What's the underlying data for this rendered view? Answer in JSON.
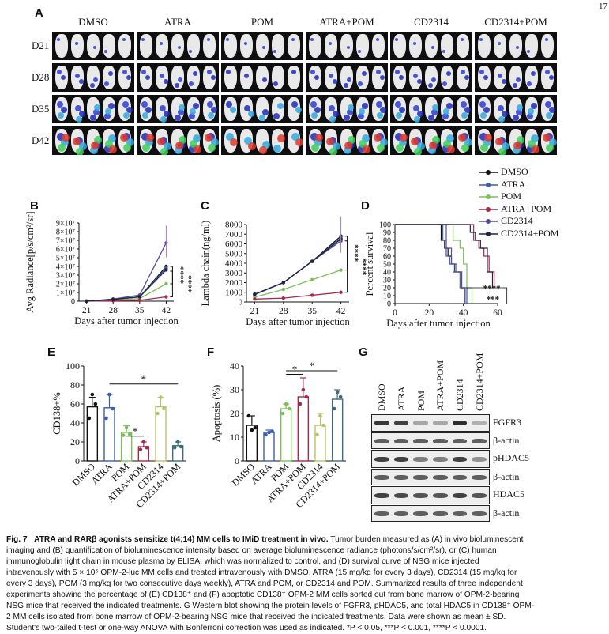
{
  "page_number": "17",
  "panels": {
    "A": {
      "letter": "A",
      "groups": [
        "DMSO",
        "ATRA",
        "POM",
        "ATRA+POM",
        "CD2314",
        "CD2314+POM"
      ],
      "days": [
        "D21",
        "D28",
        "D35",
        "D42"
      ]
    },
    "B": {
      "letter": "B"
    },
    "C": {
      "letter": "C"
    },
    "D": {
      "letter": "D"
    },
    "E": {
      "letter": "E"
    },
    "F": {
      "letter": "F"
    },
    "G": {
      "letter": "G"
    }
  },
  "legend": {
    "entries": [
      {
        "name": "DMSO",
        "color": "#111111",
        "marker": "circle"
      },
      {
        "name": "ATRA",
        "color": "#3a5fa8",
        "marker": "circle"
      },
      {
        "name": "POM",
        "color": "#7dbf5a",
        "marker": "circle"
      },
      {
        "name": "ATRA+POM",
        "color": "#a8284a",
        "marker": "circle"
      },
      {
        "name": "CD2314",
        "color": "#5a4a9a",
        "marker": "circle"
      },
      {
        "name": "CD2314+POM",
        "color": "#222244",
        "marker": "circle"
      }
    ]
  },
  "chart_data": [
    {
      "id": "B",
      "type": "line",
      "xlabel": "Days after tumor injection",
      "ylabel": "Avg Radiance[p/s/cm²/sr]",
      "x": [
        21,
        28,
        35,
        42
      ],
      "xticks": [
        "21",
        "28",
        "35",
        "42"
      ],
      "yticks": [
        "0",
        "1×10⁷",
        "2×10⁷",
        "3×10⁷",
        "4×10⁷",
        "5×10⁷",
        "6×10⁷",
        "7×10⁷",
        "8×10⁷",
        "9×10⁷"
      ],
      "ylim": [
        0,
        90000000
      ],
      "series": [
        {
          "name": "DMSO",
          "values": [
            0,
            2000000,
            5000000,
            40000000
          ]
        },
        {
          "name": "ATRA",
          "values": [
            0,
            2000000,
            5000000,
            38000000
          ]
        },
        {
          "name": "POM",
          "values": [
            0,
            1000000,
            3000000,
            20000000
          ]
        },
        {
          "name": "ATRA+POM",
          "values": [
            0,
            500000,
            1000000,
            5000000
          ]
        },
        {
          "name": "CD2314",
          "values": [
            0,
            2500000,
            7000000,
            67000000
          ]
        },
        {
          "name": "CD2314+POM",
          "values": [
            0,
            2000000,
            5000000,
            36000000
          ]
        }
      ],
      "significance": [
        "****",
        "****"
      ]
    },
    {
      "id": "C",
      "type": "line",
      "xlabel": "Days after tumor injection",
      "ylabel": "Lambda chain(ng/ml)",
      "x": [
        21,
        28,
        35,
        42
      ],
      "xticks": [
        "21",
        "28",
        "35",
        "42"
      ],
      "yticks": [
        "0",
        "1000",
        "2000",
        "3000",
        "4000",
        "5000",
        "6000",
        "7000",
        "8000"
      ],
      "ylim": [
        0,
        8000
      ],
      "series": [
        {
          "name": "DMSO",
          "values": [
            800,
            2000,
            4200,
            6800
          ]
        },
        {
          "name": "ATRA",
          "values": [
            750,
            2000,
            4200,
            6600
          ]
        },
        {
          "name": "POM",
          "values": [
            500,
            1300,
            2300,
            3300
          ]
        },
        {
          "name": "ATRA+POM",
          "values": [
            300,
            400,
            700,
            1000
          ]
        },
        {
          "name": "CD2314",
          "values": [
            800,
            2000,
            4200,
            6300
          ]
        },
        {
          "name": "CD2314+POM",
          "values": [
            800,
            2000,
            4200,
            6500
          ]
        }
      ],
      "significance": [
        "****",
        "****"
      ]
    },
    {
      "id": "D",
      "type": "line",
      "xlabel": "Days after tumor injection",
      "ylabel": "Percent survival",
      "xticks": [
        "0",
        "20",
        "40",
        "60"
      ],
      "yticks": [
        "0",
        "10",
        "20",
        "30",
        "40",
        "50",
        "60",
        "70",
        "80",
        "90",
        "100"
      ],
      "xlim": [
        0,
        60
      ],
      "ylim": [
        0,
        100
      ],
      "series": [
        {
          "name": "DMSO",
          "x": [
            0,
            25,
            27,
            29,
            31,
            33,
            35,
            37,
            39,
            41
          ],
          "values": [
            100,
            100,
            80,
            70,
            60,
            50,
            40,
            40,
            20,
            0
          ]
        },
        {
          "name": "ATRA",
          "x": [
            0,
            26,
            28,
            30,
            32,
            34,
            38,
            41
          ],
          "values": [
            100,
            100,
            80,
            60,
            50,
            40,
            20,
            0
          ]
        },
        {
          "name": "POM",
          "x": [
            0,
            30,
            34,
            38,
            40,
            42,
            45
          ],
          "values": [
            100,
            100,
            80,
            70,
            50,
            20,
            0
          ]
        },
        {
          "name": "ATRA+POM",
          "x": [
            0,
            43,
            46,
            49,
            52,
            55,
            58
          ],
          "values": [
            100,
            100,
            80,
            70,
            60,
            40,
            20
          ]
        },
        {
          "name": "CD2314",
          "x": [
            0,
            27,
            30,
            33,
            36,
            39,
            42
          ],
          "values": [
            100,
            100,
            70,
            50,
            40,
            20,
            0
          ]
        },
        {
          "name": "CD2314+POM",
          "x": [
            0,
            40,
            44,
            47,
            50,
            54,
            57
          ],
          "values": [
            100,
            100,
            90,
            80,
            70,
            40,
            20
          ]
        }
      ],
      "significance": [
        "****",
        "***"
      ]
    },
    {
      "id": "E",
      "type": "bar",
      "ylabel": "CD138+%",
      "categories": [
        "DMSO",
        "ATRA",
        "POM",
        "ATRA+POM",
        "CD2314",
        "CD2314+POM"
      ],
      "values": [
        57,
        56,
        30,
        15,
        57,
        16
      ],
      "errors": [
        10,
        14,
        7,
        5,
        10,
        4
      ],
      "points": [
        [
          45,
          70,
          60
        ],
        [
          45,
          70,
          55
        ],
        [
          27,
          35,
          28
        ],
        [
          12,
          20,
          14
        ],
        [
          50,
          67,
          55
        ],
        [
          14,
          20,
          15
        ]
      ],
      "yticks": [
        "0",
        "20",
        "40",
        "60",
        "80",
        "100"
      ],
      "ylim": [
        0,
        100
      ],
      "colors": [
        "#111111",
        "#3a5fa8",
        "#7dbf5a",
        "#a8284a",
        "#b9c46a",
        "#3d6b7a"
      ],
      "significance": [
        "*",
        "*"
      ]
    },
    {
      "id": "F",
      "type": "bar",
      "ylabel": "Apoptosis (%)",
      "categories": [
        "DMSO",
        "ATRA",
        "POM",
        "ATRA+POM",
        "CD2314",
        "CD2314+POM"
      ],
      "values": [
        15,
        12,
        22,
        27,
        15,
        26
      ],
      "errors": [
        4,
        1,
        2,
        8,
        5,
        4
      ],
      "points": [
        [
          19,
          13,
          14
        ],
        [
          11,
          12,
          12.5
        ],
        [
          20,
          24,
          22
        ],
        [
          24,
          30,
          27
        ],
        [
          11,
          19,
          15
        ],
        [
          22,
          29,
          27
        ]
      ],
      "yticks": [
        "0",
        "10",
        "20",
        "30",
        "40"
      ],
      "ylim": [
        0,
        40
      ],
      "colors": [
        "#111111",
        "#3a5fa8",
        "#7dbf5a",
        "#a8284a",
        "#b9c46a",
        "#3d6b7a"
      ],
      "significance": [
        "*",
        "*"
      ]
    }
  ],
  "western_blot": {
    "lanes": [
      "DMSO",
      "ATRA",
      "POM",
      "ATRA+POM",
      "CD2314",
      "CD2314+POM"
    ],
    "rows": [
      {
        "label": "FGFR3",
        "intensity": [
          0.9,
          0.85,
          0.35,
          0.35,
          0.95,
          0.3
        ]
      },
      {
        "label": "β-actin",
        "intensity": [
          0.7,
          0.7,
          0.7,
          0.7,
          0.7,
          0.7
        ]
      },
      {
        "label": "pHDAC5",
        "intensity": [
          0.85,
          0.85,
          0.55,
          0.55,
          0.85,
          0.45
        ]
      },
      {
        "label": "β-actin",
        "intensity": [
          0.7,
          0.7,
          0.7,
          0.7,
          0.7,
          0.7
        ]
      },
      {
        "label": "HDAC5",
        "intensity": [
          0.85,
          0.8,
          0.75,
          0.75,
          0.85,
          0.75
        ]
      },
      {
        "label": "β-actin",
        "intensity": [
          0.7,
          0.7,
          0.7,
          0.7,
          0.7,
          0.7
        ]
      }
    ]
  },
  "caption": {
    "fig_label": "Fig. 7",
    "title": "ATRA and RARβ agonists sensitize t(4;14) MM cells to IMiD treatment in vivo.",
    "lines": [
      "Tumor burden measured as (A) in vivo bioluminescent",
      "imaging and (B) quantification of bioluminescence intensity based on average bioluminescence radiance (photons/s/cm²/sr), or (C) human",
      "immunoglobulin light chain in mouse plasma by ELISA, which was normalized to control, and (D) survival curve of NSG mice injected",
      "intravenously with 5 × 10⁶ OPM-2-luc MM cells and treated intravenously with DMSO, ATRA (15 mg/kg for every 3 days), CD2314 (15 mg/kg for",
      "every 3 days), POM (3 mg/kg for two consecutive days weekly), ATRA and POM, or CD2314 and POM. Summarized results of three independent",
      "experiments showing the percentage of (E) CD138⁺ and (F) apoptotic CD138⁺ OPM-2 MM cells sorted out from bone marrow of OPM-2-bearing",
      "NSG mice that received the indicated treatments. G Western blot showing the protein levels of FGFR3, pHDAC5, and total HDAC5 in CD138⁺ OPM-",
      "2 MM cells isolated from bone marrow of OPM-2-bearing NSG mice that received the indicated treatments. Data were shown as mean ± SD.",
      "Student's two-tailed t-test or one-way ANOVA with Bonferroni correction was used as indicated. *P < 0.05, ***P < 0.001, ****P < 0.0001."
    ]
  }
}
